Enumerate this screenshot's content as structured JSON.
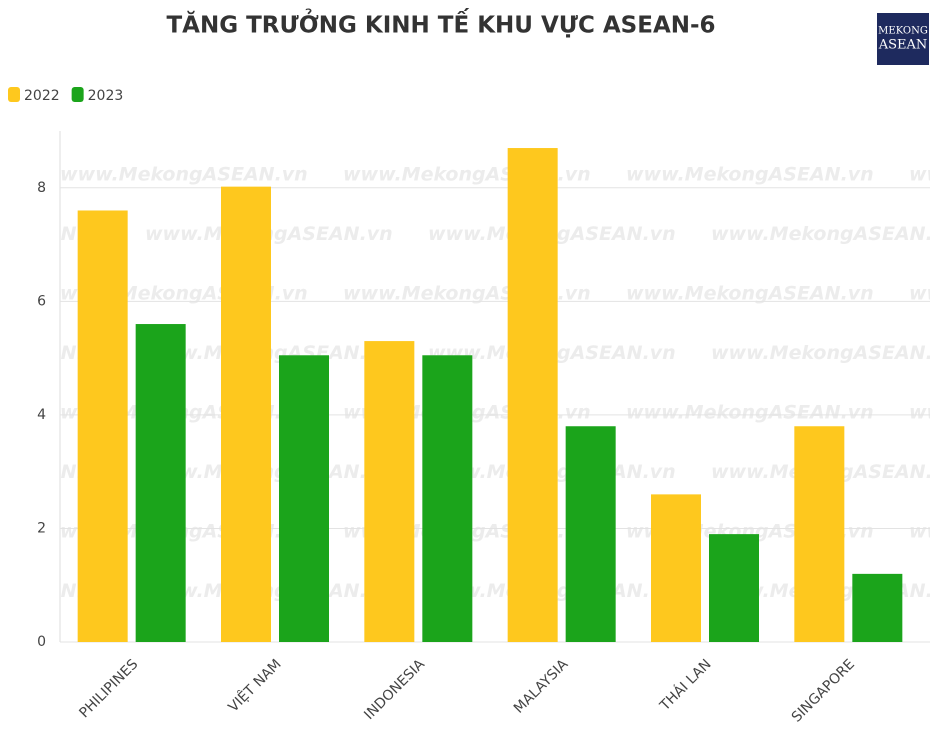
{
  "chart_data": {
    "type": "bar",
    "title": "TĂNG TRƯỞNG KINH TẾ KHU VỰC ASEAN-6",
    "logo": {
      "line1": "MEKONG",
      "line2": "ASEAN"
    },
    "watermark": "www.MekongASEAN.vn",
    "categories": [
      "PHILIPINES",
      "VIỆT NAM",
      "INDONESIA",
      "MALAYSIA",
      "THÁI LAN",
      "SINGAPORE"
    ],
    "series": [
      {
        "name": "2022",
        "color": "#fec81e",
        "values": [
          7.6,
          8.02,
          5.3,
          8.7,
          2.6,
          3.8
        ]
      },
      {
        "name": "2023",
        "color": "#1ba41b",
        "values": [
          5.6,
          5.05,
          5.05,
          3.8,
          1.9,
          1.2
        ]
      }
    ],
    "ylim": [
      0,
      9
    ],
    "yticks": [
      0,
      2,
      4,
      6,
      8
    ],
    "grid": true,
    "legend": "top-left"
  }
}
